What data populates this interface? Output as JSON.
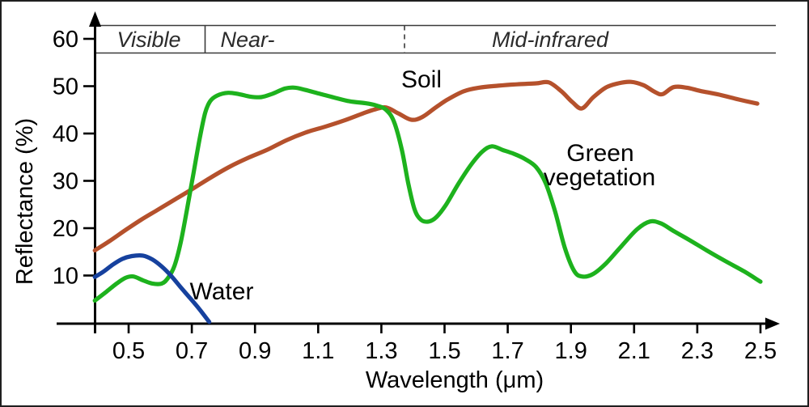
{
  "figure": {
    "description": "Spectral reflectance curves of soil, green vegetation and water"
  },
  "chart_data": {
    "type": "line",
    "title": "",
    "xlabel": "Wavelength (μm)",
    "ylabel": "Reflectance (%)",
    "x_ticks": [
      "0.5",
      "0.7",
      "0.9",
      "1.1",
      "1.3",
      "1.5",
      "1.7",
      "1.9",
      "2.1",
      "2.3",
      "2.5"
    ],
    "y_ticks": [
      "10",
      "20",
      "30",
      "40",
      "50",
      "60"
    ],
    "xlim": [
      0.39,
      2.55
    ],
    "ylim": [
      0,
      63
    ],
    "grid": false,
    "legend": "labels placed next to curves",
    "bands": [
      {
        "label": "Visible",
        "range_um": [
          0.39,
          0.74
        ]
      },
      {
        "label": "Near-",
        "range_um": [
          0.74,
          1.37
        ]
      },
      {
        "label": "Mid-infrared",
        "range_um": [
          1.37,
          2.55
        ]
      }
    ],
    "series": [
      {
        "name": "Soil",
        "color": "#b5512c",
        "label_lines": [
          "Soil"
        ],
        "points": [
          [
            0.393,
            15.3
          ],
          [
            0.44,
            17.3
          ],
          [
            0.49,
            19.6
          ],
          [
            0.54,
            21.8
          ],
          [
            0.59,
            23.8
          ],
          [
            0.645,
            26.0
          ],
          [
            0.7,
            28.2
          ],
          [
            0.755,
            30.5
          ],
          [
            0.82,
            33.0
          ],
          [
            0.88,
            34.9
          ],
          [
            0.94,
            36.6
          ],
          [
            1.0,
            38.6
          ],
          [
            1.06,
            40.2
          ],
          [
            1.12,
            41.4
          ],
          [
            1.18,
            42.7
          ],
          [
            1.24,
            44.2
          ],
          [
            1.28,
            45.1
          ],
          [
            1.315,
            45.5
          ],
          [
            1.355,
            44.2
          ],
          [
            1.395,
            42.9
          ],
          [
            1.43,
            43.5
          ],
          [
            1.47,
            45.4
          ],
          [
            1.51,
            47.2
          ],
          [
            1.56,
            48.9
          ],
          [
            1.61,
            49.7
          ],
          [
            1.67,
            50.1
          ],
          [
            1.73,
            50.4
          ],
          [
            1.79,
            50.6
          ],
          [
            1.83,
            50.8
          ],
          [
            1.87,
            48.9
          ],
          [
            1.905,
            46.6
          ],
          [
            1.935,
            45.3
          ],
          [
            1.97,
            47.6
          ],
          [
            2.01,
            49.7
          ],
          [
            2.05,
            50.6
          ],
          [
            2.09,
            50.9
          ],
          [
            2.13,
            50.2
          ],
          [
            2.165,
            48.8
          ],
          [
            2.19,
            48.3
          ],
          [
            2.225,
            49.8
          ],
          [
            2.265,
            49.7
          ],
          [
            2.31,
            49.0
          ],
          [
            2.37,
            48.2
          ],
          [
            2.43,
            47.2
          ],
          [
            2.49,
            46.3
          ]
        ]
      },
      {
        "name": "Green vegetation",
        "color": "#1db21d",
        "label_lines": [
          "Green",
          "vegetation"
        ],
        "points": [
          [
            0.393,
            4.7
          ],
          [
            0.43,
            6.6
          ],
          [
            0.46,
            8.2
          ],
          [
            0.49,
            9.5
          ],
          [
            0.515,
            9.8
          ],
          [
            0.545,
            9.0
          ],
          [
            0.575,
            8.3
          ],
          [
            0.605,
            8.3
          ],
          [
            0.625,
            9.5
          ],
          [
            0.645,
            12.0
          ],
          [
            0.665,
            17.0
          ],
          [
            0.685,
            24.0
          ],
          [
            0.705,
            31.5
          ],
          [
            0.725,
            39.0
          ],
          [
            0.742,
            44.3
          ],
          [
            0.758,
            46.8
          ],
          [
            0.78,
            48.0
          ],
          [
            0.815,
            48.6
          ],
          [
            0.85,
            48.3
          ],
          [
            0.885,
            47.8
          ],
          [
            0.92,
            47.7
          ],
          [
            0.955,
            48.4
          ],
          [
            0.995,
            49.5
          ],
          [
            1.025,
            49.7
          ],
          [
            1.06,
            49.2
          ],
          [
            1.105,
            48.4
          ],
          [
            1.15,
            47.6
          ],
          [
            1.2,
            46.8
          ],
          [
            1.25,
            46.4
          ],
          [
            1.285,
            45.9
          ],
          [
            1.315,
            45.0
          ],
          [
            1.34,
            42.5
          ],
          [
            1.365,
            36.5
          ],
          [
            1.385,
            29.5
          ],
          [
            1.405,
            24.0
          ],
          [
            1.425,
            21.8
          ],
          [
            1.45,
            21.4
          ],
          [
            1.475,
            22.4
          ],
          [
            1.505,
            25.0
          ],
          [
            1.545,
            29.5
          ],
          [
            1.585,
            33.5
          ],
          [
            1.62,
            36.2
          ],
          [
            1.65,
            37.3
          ],
          [
            1.685,
            36.5
          ],
          [
            1.72,
            35.7
          ],
          [
            1.755,
            34.6
          ],
          [
            1.79,
            32.9
          ],
          [
            1.82,
            29.5
          ],
          [
            1.85,
            23.5
          ],
          [
            1.88,
            16.0
          ],
          [
            1.91,
            11.0
          ],
          [
            1.935,
            9.8
          ],
          [
            1.97,
            10.3
          ],
          [
            2.01,
            12.5
          ],
          [
            2.06,
            16.2
          ],
          [
            2.11,
            19.8
          ],
          [
            2.15,
            21.4
          ],
          [
            2.185,
            21.0
          ],
          [
            2.225,
            19.4
          ],
          [
            2.275,
            17.5
          ],
          [
            2.33,
            15.3
          ],
          [
            2.39,
            13.0
          ],
          [
            2.45,
            10.8
          ],
          [
            2.5,
            8.7
          ]
        ]
      },
      {
        "name": "Water",
        "color": "#16419e",
        "label_lines": [
          "Water"
        ],
        "points": [
          [
            0.393,
            9.7
          ],
          [
            0.42,
            10.8
          ],
          [
            0.45,
            12.3
          ],
          [
            0.48,
            13.5
          ],
          [
            0.51,
            14.1
          ],
          [
            0.545,
            14.2
          ],
          [
            0.575,
            13.4
          ],
          [
            0.605,
            11.9
          ],
          [
            0.635,
            9.9
          ],
          [
            0.665,
            7.5
          ],
          [
            0.695,
            5.2
          ],
          [
            0.725,
            2.8
          ],
          [
            0.755,
            0.2
          ]
        ]
      }
    ]
  }
}
